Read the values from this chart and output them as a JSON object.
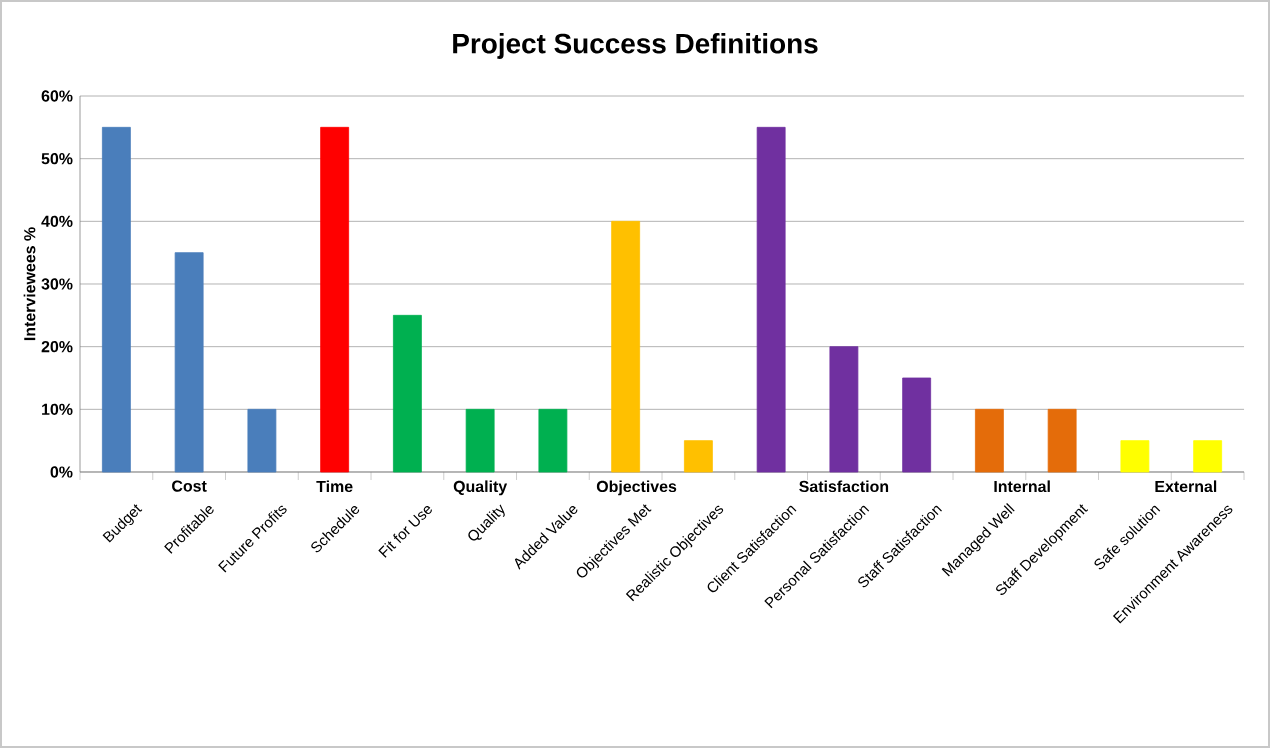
{
  "chart_data": {
    "type": "bar",
    "title": "Project Success Definitions",
    "ylabel": "Interviewees %",
    "categories": [
      "Budget",
      "Profitable",
      "Future Profits",
      "Schedule",
      "Fit for Use",
      "Quality",
      "Added Value",
      "Objectives Met",
      "Realistic Objectives",
      "Client Satisfaction",
      "Personal Satisfaction",
      "Staff Satisfaction",
      "Managed Well",
      "Staff Development",
      "Safe solution",
      "Environment Awareness"
    ],
    "values": [
      55,
      35,
      10,
      55,
      25,
      10,
      10,
      40,
      5,
      55,
      20,
      15,
      10,
      10,
      5,
      5
    ],
    "colors": [
      "#4a7ebb",
      "#4a7ebb",
      "#4a7ebb",
      "#ff0000",
      "#00b050",
      "#00b050",
      "#00b050",
      "#ffc000",
      "#ffc000",
      "#7030a0",
      "#7030a0",
      "#7030a0",
      "#e46c0a",
      "#e46c0a",
      "#ffff00",
      "#ffff00"
    ],
    "ylim": [
      0,
      60
    ],
    "yticks": [
      {
        "value": 0,
        "label": "0%"
      },
      {
        "value": 10,
        "label": "10%"
      },
      {
        "value": 20,
        "label": "20%"
      },
      {
        "value": 30,
        "label": "30%"
      },
      {
        "value": 40,
        "label": "40%"
      },
      {
        "value": 50,
        "label": "50%"
      },
      {
        "value": 60,
        "label": "60%"
      }
    ],
    "grid": "y",
    "annotations": [
      "Cost",
      "Time",
      "Quality",
      "Objectives",
      "Satisfaction",
      "Internal",
      "External"
    ]
  }
}
